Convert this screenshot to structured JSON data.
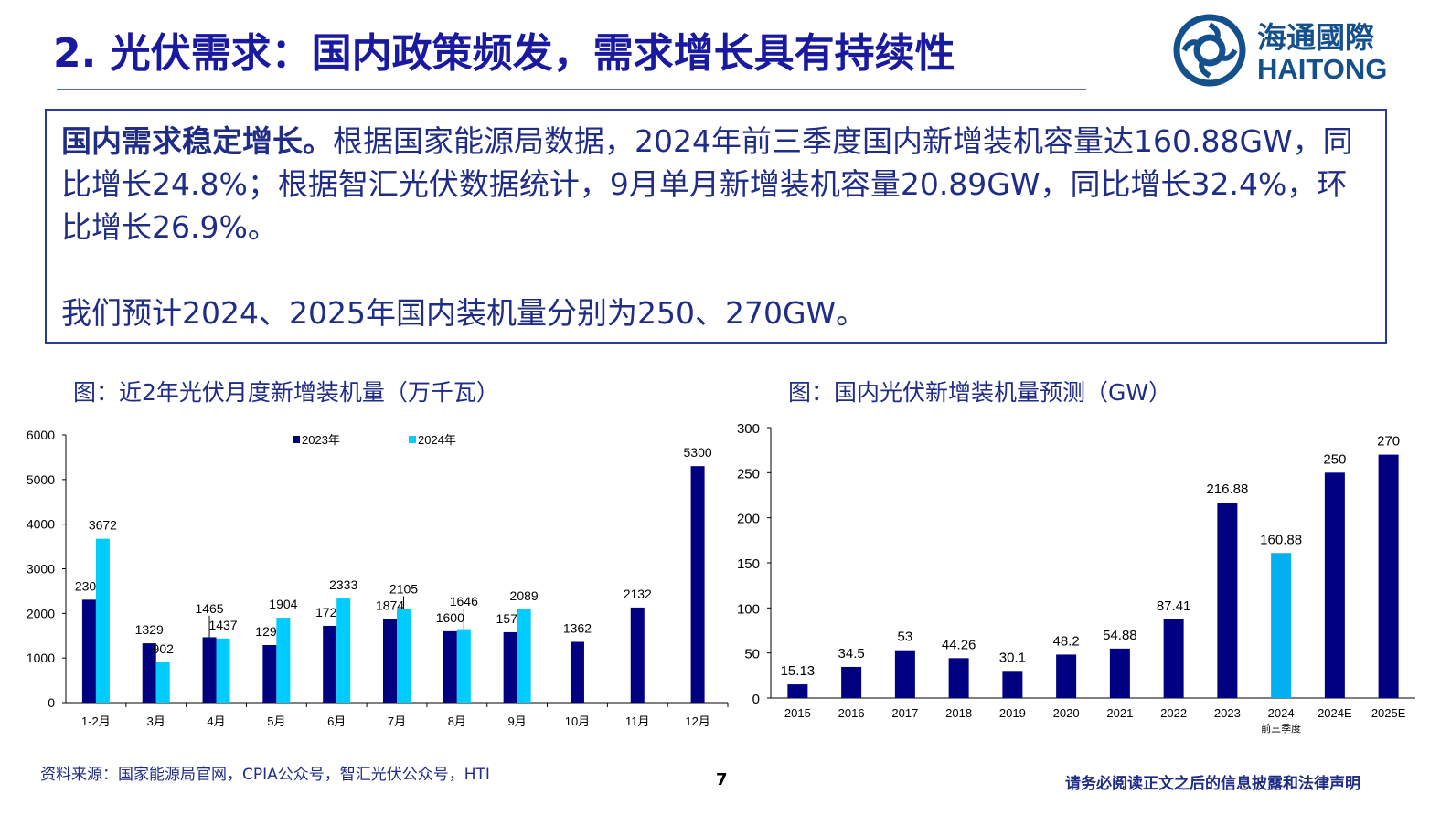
{
  "header": {
    "title": "2. 光伏需求：国内政策频发，需求增长具有持续性",
    "logo_cn": "海通國際",
    "logo_en": "HAITONG"
  },
  "summary": {
    "bold_lead": "国内需求稳定增长。",
    "line1": "根据国家能源局数据，2024年前三季度国内新增装机容量达160.88GW，同比增长24.8%；根据智汇光伏数据统计，9月单月新增装机容量20.89GW，同比增长32.4%，环比增长26.9%。",
    "line2": "我们预计2024、2025年国内装机量分别为250、270GW。"
  },
  "colors": {
    "navy": "#000080",
    "cyan": "#00CCFF",
    "cyan2": "#00B0F0"
  },
  "chart_data": [
    {
      "type": "bar",
      "title": "图：近2年光伏月度新增装机量（万千瓦）",
      "categories": [
        "1-2月",
        "3月",
        "4月",
        "5月",
        "6月",
        "7月",
        "8月",
        "9月",
        "10月",
        "11月",
        "12月"
      ],
      "series": [
        {
          "name": "2023年",
          "values": [
            2307,
            1329,
            1465,
            1290,
            1721,
            1874,
            1600,
            1578,
            1362,
            2132,
            5300
          ]
        },
        {
          "name": "2024年",
          "values": [
            3672,
            902,
            1437,
            1904,
            2333,
            2105,
            1646,
            2089,
            null,
            null,
            null
          ]
        }
      ],
      "ylim": [
        0,
        6000
      ],
      "yticks": [
        0,
        1000,
        2000,
        3000,
        4000,
        5000,
        6000
      ],
      "legend": "top-center"
    },
    {
      "type": "bar",
      "title": "图：国内光伏新增装机量预测（GW）",
      "categories": [
        "2015",
        "2016",
        "2017",
        "2018",
        "2019",
        "2020",
        "2021",
        "2022",
        "2023",
        "2024",
        "2024E",
        "2025E"
      ],
      "sublabel": {
        "category": "2024",
        "text": "前三季度"
      },
      "values": [
        15.13,
        34.5,
        53,
        44.26,
        30.1,
        48.2,
        54.88,
        87.41,
        216.88,
        160.88,
        250,
        270
      ],
      "labels": [
        "15.13",
        "34.5",
        "53",
        "44.26",
        "30.1",
        "48.2",
        "54.88",
        "87.41",
        "216.88",
        "160.88",
        "250",
        "270"
      ],
      "highlight": "2024",
      "ylim": [
        0,
        300
      ],
      "yticks": [
        0,
        50,
        100,
        150,
        200,
        250,
        300
      ]
    }
  ],
  "footer": {
    "source": "资料来源：国家能源局官网，CPIA公众号，智汇光伏公众号，HTI",
    "page": "7",
    "disclaimer": "请务必阅读正文之后的信息披露和法律声明"
  }
}
